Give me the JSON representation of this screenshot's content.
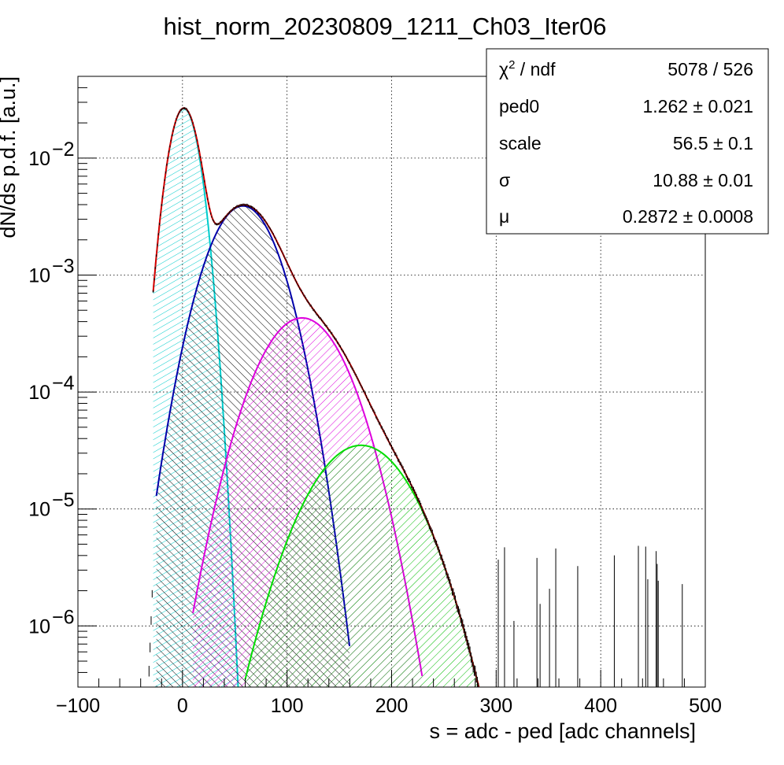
{
  "chart_data": {
    "type": "line",
    "title": "hist_norm_20230809_1211_Ch03_Iter06",
    "xlabel": "s = adc - ped [adc channels]",
    "ylabel": "dN/ds p.d.f. [a.u.]",
    "xlim": [
      -100,
      500
    ],
    "ylim": [
      3e-07,
      0.05
    ],
    "yscale": "log",
    "grid": true,
    "x_ticks": [
      {
        "value": -100,
        "label": "−100"
      },
      {
        "value": 0,
        "label": "0"
      },
      {
        "value": 100,
        "label": "100"
      },
      {
        "value": 200,
        "label": "200"
      },
      {
        "value": 300,
        "label": "300"
      },
      {
        "value": 400,
        "label": "400"
      },
      {
        "value": 500,
        "label": "500"
      }
    ],
    "y_ticks": [
      {
        "value": 1e-06,
        "mantissa": "10",
        "exponent": "−6"
      },
      {
        "value": 1e-05,
        "mantissa": "10",
        "exponent": "−5"
      },
      {
        "value": 0.0001,
        "mantissa": "10",
        "exponent": "−4"
      },
      {
        "value": 0.001,
        "mantissa": "10",
        "exponent": "−3"
      },
      {
        "value": 0.01,
        "mantissa": "10",
        "exponent": "−2"
      }
    ],
    "series": [
      {
        "color": "#00cccc",
        "fill": "hatched",
        "peak_x": 1.26,
        "peak_y": 0.0265,
        "sigma": 10.88,
        "range": [
          -28,
          120
        ]
      },
      {
        "color": "#0000aa",
        "fill": "hatched",
        "peak_x": 57.8,
        "peak_y": 0.0039,
        "sigma": 24.5,
        "range": [
          -25,
          160
        ]
      },
      {
        "color": "#dd00dd",
        "fill": "hatched",
        "peak_x": 114.3,
        "peak_y": 0.00043,
        "sigma": 30.6,
        "range": [
          10,
          230
        ]
      },
      {
        "color": "#00dd00",
        "fill": "hatched",
        "peak_x": 170.8,
        "peak_y": 3.5e-05,
        "sigma": 36.5,
        "range": [
          60,
          290
        ]
      },
      {
        "color": "#dd0000",
        "fill": "none",
        "role": "total-fit",
        "range": [
          -28,
          320
        ]
      }
    ],
    "data_histogram": {
      "color": "#000000",
      "style": "error-bars",
      "range": [
        -40,
        480
      ]
    },
    "stats_box": {
      "rows": [
        {
          "name_base": "χ",
          "name_sup": "2",
          "name_rest": " / ndf",
          "value": "5078 / 526"
        },
        {
          "name_base": "ped0",
          "name_sup": "",
          "name_rest": "",
          "value": "1.262 ± 0.021"
        },
        {
          "name_base": "scale",
          "name_sup": "",
          "name_rest": "",
          "value": "56.5 ± 0.1"
        },
        {
          "name_base": "σ",
          "name_sup": "",
          "name_rest": "",
          "value": "10.88 ± 0.01"
        },
        {
          "name_base": "μ",
          "name_sup": "",
          "name_rest": "",
          "value": "0.2872 ± 0.0008"
        }
      ]
    }
  }
}
